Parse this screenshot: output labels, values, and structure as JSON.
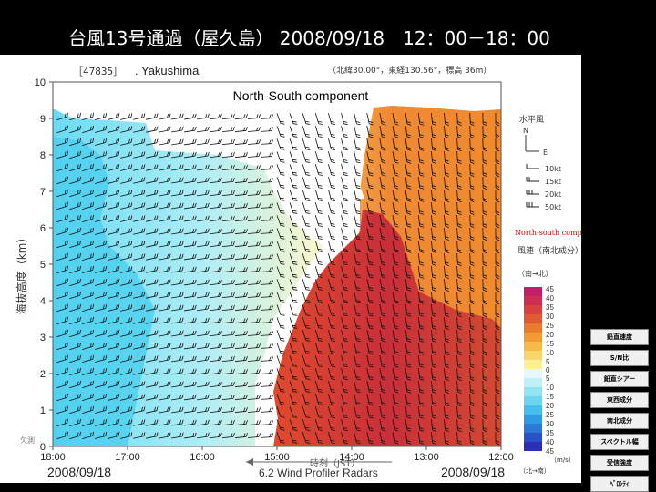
{
  "slide": {
    "title": "台風13号通過（屋久島） 2008/09/18　12：00－18：00",
    "caption": "6.2 Wind Profiler Radars"
  },
  "station": {
    "id": "［47835］",
    "name": ". Yakushima",
    "coords": "（北緯30.00°，東経130.56°，標高 36m）"
  },
  "chart_data": {
    "type": "heatmap",
    "title": "North-South component",
    "ylabel": "海抜高度（km）",
    "ylim": [
      0,
      10
    ],
    "y_ticks": [
      "0",
      "1",
      "2",
      "3",
      "4",
      "5",
      "6",
      "7",
      "8",
      "9",
      "10"
    ],
    "x_ticks": [
      "18:00",
      "17:00",
      "16:00",
      "15:00",
      "14:00",
      "13:00",
      "12:00"
    ],
    "x_date_left": "2008/09/18",
    "x_date_right": "2008/09/18",
    "x_axis_label": "時刻（JST）",
    "colorbar": {
      "title": "North-south component",
      "unit_label": "風速（南北成分）",
      "south_label": "（南→北）",
      "north_label": "（北→南）",
      "upper_ticks": [
        "45",
        "40",
        "35",
        "30",
        "25",
        "20",
        "15",
        "10",
        "5"
      ],
      "zero_tick": "0",
      "lower_ticks": [
        "5",
        "10",
        "15",
        "20",
        "25",
        "30",
        "35",
        "40",
        "45"
      ],
      "unit": "（m/s）"
    },
    "barb_legend": {
      "title": "水平風",
      "north": "N",
      "east": "E",
      "entries": [
        "10kt",
        "15kt",
        "20kt",
        "50kt"
      ]
    },
    "missing_label": "欠測"
  },
  "side_buttons": [
    "鉛直速度",
    "S/N比",
    "鉛直シアー",
    "東西成分",
    "南北成分",
    "スペクトル幅",
    "受信強度",
    "ﾍﾞﾛｼﾃｨ"
  ]
}
